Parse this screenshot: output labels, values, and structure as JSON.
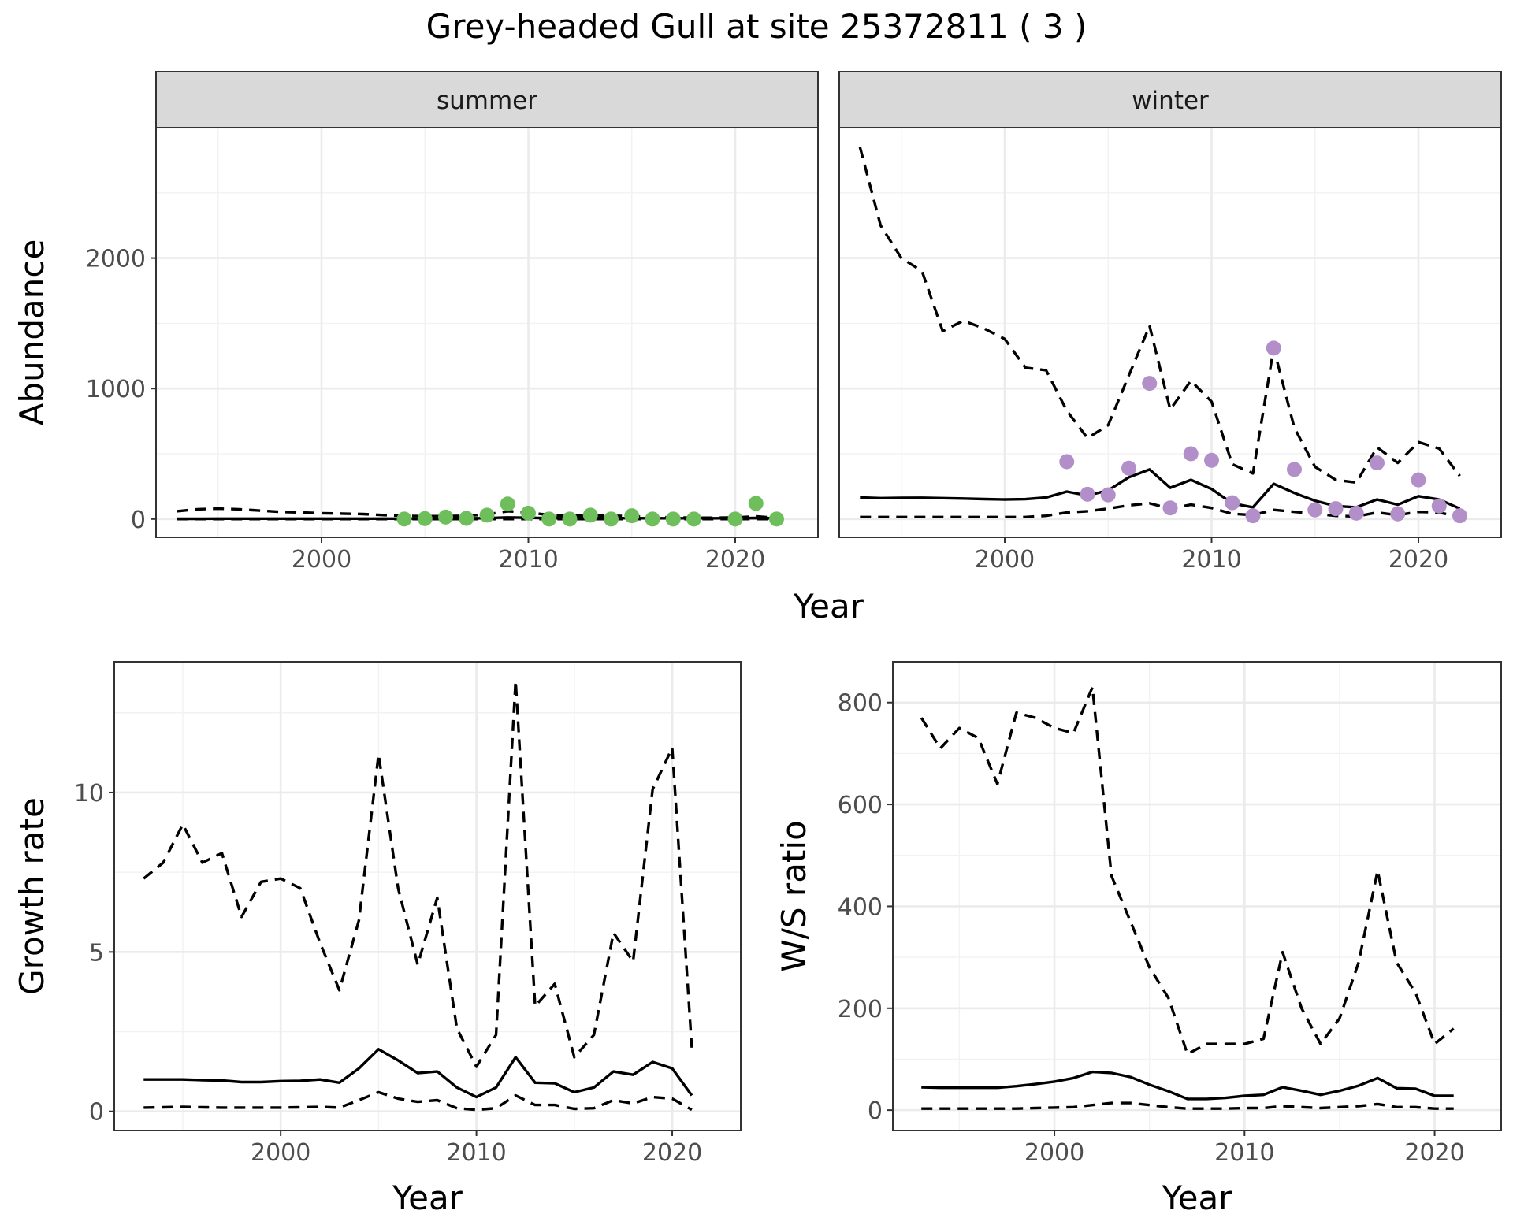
{
  "figure": {
    "title": "Grey-headed Gull at site 25372811 ( 3 )"
  },
  "chart_data": [
    {
      "id": "abundance",
      "type": "line",
      "ylabel": "Abundance",
      "xlabel": "Year",
      "xlim": [
        1992,
        2024
      ],
      "ylim": [
        -140,
        3000
      ],
      "xticks": [
        2000,
        2010,
        2020
      ],
      "yticks": [
        0,
        1000,
        2000
      ],
      "grid": true,
      "facets": [
        {
          "strip": "summer",
          "point_color": "#6ebf5c",
          "years": [
            1993,
            1994,
            1995,
            1996,
            1997,
            1998,
            1999,
            2000,
            2001,
            2002,
            2003,
            2004,
            2005,
            2006,
            2007,
            2008,
            2009,
            2010,
            2011,
            2012,
            2013,
            2014,
            2015,
            2016,
            2017,
            2018,
            2019,
            2020,
            2021,
            2022
          ],
          "estimate": [
            2,
            2,
            3,
            3,
            3,
            3,
            3,
            3,
            3,
            3,
            3,
            3,
            3,
            4,
            5,
            7,
            12,
            10,
            7,
            6,
            8,
            7,
            7,
            6,
            6,
            6,
            6,
            7,
            8,
            5
          ],
          "upper": [
            60,
            75,
            80,
            75,
            65,
            55,
            50,
            45,
            42,
            38,
            30,
            25,
            22,
            22,
            25,
            35,
            60,
            50,
            30,
            22,
            30,
            25,
            22,
            15,
            12,
            10,
            10,
            12,
            20,
            10
          ],
          "lower": [
            0,
            0,
            0,
            0,
            0,
            0,
            0,
            0,
            0,
            0,
            0,
            0,
            0,
            0,
            0,
            0,
            0,
            0,
            0,
            0,
            0,
            0,
            0,
            0,
            0,
            0,
            0,
            0,
            0,
            0
          ],
          "points": {
            "years": [
              2004,
              2005,
              2006,
              2007,
              2008,
              2009,
              2010,
              2011,
              2012,
              2013,
              2014,
              2015,
              2016,
              2017,
              2018,
              2020,
              2021,
              2022
            ],
            "values": [
              0,
              3,
              15,
              5,
              30,
              115,
              45,
              0,
              0,
              30,
              0,
              25,
              0,
              0,
              0,
              0,
              120,
              0
            ]
          }
        },
        {
          "strip": "winter",
          "point_color": "#b38fca",
          "years": [
            1993,
            1994,
            1995,
            1996,
            1997,
            1998,
            1999,
            2000,
            2001,
            2002,
            2003,
            2004,
            2005,
            2006,
            2007,
            2008,
            2009,
            2010,
            2011,
            2012,
            2013,
            2014,
            2015,
            2016,
            2017,
            2018,
            2019,
            2020,
            2021,
            2022
          ],
          "estimate": [
            165,
            160,
            162,
            163,
            160,
            157,
            153,
            150,
            152,
            165,
            210,
            180,
            220,
            320,
            380,
            240,
            300,
            230,
            120,
            90,
            270,
            200,
            140,
            100,
            90,
            150,
            110,
            175,
            150,
            80
          ],
          "upper": [
            2850,
            2250,
            2000,
            1900,
            1440,
            1520,
            1460,
            1380,
            1160,
            1140,
            830,
            620,
            720,
            1100,
            1480,
            840,
            1060,
            900,
            420,
            350,
            1310,
            700,
            400,
            300,
            280,
            550,
            430,
            590,
            540,
            330
          ],
          "lower": [
            15,
            15,
            15,
            15,
            15,
            15,
            15,
            15,
            15,
            25,
            50,
            60,
            80,
            105,
            120,
            80,
            110,
            85,
            40,
            30,
            70,
            55,
            40,
            25,
            20,
            50,
            30,
            55,
            50,
            15
          ],
          "points": {
            "years": [
              2003,
              2004,
              2005,
              2006,
              2007,
              2008,
              2009,
              2010,
              2011,
              2012,
              2013,
              2014,
              2015,
              2016,
              2017,
              2018,
              2019,
              2020,
              2021,
              2022
            ],
            "values": [
              440,
              190,
              185,
              390,
              1040,
              85,
              500,
              450,
              125,
              25,
              1310,
              380,
              70,
              80,
              45,
              430,
              40,
              300,
              100,
              25
            ]
          }
        }
      ]
    },
    {
      "id": "growth",
      "type": "line",
      "ylabel": "Growth rate",
      "xlabel": "Year",
      "xlim": [
        1991.5,
        2023.5
      ],
      "ylim": [
        -0.6,
        14.1
      ],
      "xticks": [
        2000,
        2010,
        2020
      ],
      "yticks": [
        0,
        5,
        10
      ],
      "grid": true,
      "x": [
        1993,
        1994,
        1995,
        1996,
        1997,
        1998,
        1999,
        2000,
        2001,
        2002,
        2003,
        2004,
        2005,
        2006,
        2007,
        2008,
        2009,
        2010,
        2011,
        2012,
        2013,
        2014,
        2015,
        2016,
        2017,
        2018,
        2019,
        2020,
        2021
      ],
      "estimate": [
        1.0,
        1.0,
        1.0,
        0.98,
        0.97,
        0.92,
        0.92,
        0.95,
        0.96,
        1.0,
        0.9,
        1.35,
        1.95,
        1.6,
        1.2,
        1.25,
        0.75,
        0.45,
        0.75,
        1.7,
        0.9,
        0.88,
        0.6,
        0.75,
        1.25,
        1.15,
        1.55,
        1.35,
        0.5
      ],
      "upper": [
        7.3,
        7.8,
        9.0,
        7.8,
        8.1,
        6.1,
        7.2,
        7.3,
        7.0,
        5.3,
        3.8,
        6.0,
        11.2,
        7.0,
        4.6,
        6.7,
        2.6,
        1.4,
        2.4,
        13.5,
        3.3,
        4.0,
        1.7,
        2.4,
        5.6,
        4.7,
        10.1,
        11.4,
        2.0
      ],
      "lower": [
        0.12,
        0.13,
        0.14,
        0.13,
        0.12,
        0.12,
        0.12,
        0.12,
        0.13,
        0.14,
        0.12,
        0.35,
        0.6,
        0.4,
        0.3,
        0.35,
        0.1,
        0.05,
        0.1,
        0.5,
        0.2,
        0.2,
        0.08,
        0.1,
        0.35,
        0.25,
        0.45,
        0.4,
        0.05
      ]
    },
    {
      "id": "ws_ratio",
      "type": "line",
      "ylabel": "W/S ratio",
      "xlabel": "Year",
      "xlim": [
        1991.5,
        2023.5
      ],
      "ylim": [
        -40,
        880
      ],
      "xticks": [
        2000,
        2010,
        2020
      ],
      "yticks": [
        0,
        200,
        400,
        600,
        800
      ],
      "grid": true,
      "x": [
        1993,
        1994,
        1995,
        1996,
        1997,
        1998,
        1999,
        2000,
        2001,
        2002,
        2003,
        2004,
        2005,
        2006,
        2007,
        2008,
        2009,
        2010,
        2011,
        2012,
        2013,
        2014,
        2015,
        2016,
        2017,
        2018,
        2019,
        2020,
        2021
      ],
      "estimate": [
        45,
        44,
        44,
        44,
        44,
        47,
        51,
        56,
        63,
        75,
        73,
        65,
        50,
        37,
        22,
        22,
        24,
        28,
        30,
        45,
        38,
        30,
        38,
        48,
        63,
        43,
        42,
        28,
        28
      ],
      "upper": [
        770,
        710,
        750,
        730,
        640,
        780,
        770,
        750,
        740,
        830,
        460,
        370,
        280,
        220,
        110,
        130,
        130,
        130,
        140,
        310,
        200,
        130,
        180,
        290,
        470,
        290,
        230,
        130,
        160
      ],
      "lower": [
        3,
        3,
        3,
        3,
        3,
        3,
        4,
        5,
        6,
        10,
        14,
        14,
        10,
        6,
        3,
        3,
        3,
        4,
        4,
        8,
        6,
        4,
        6,
        8,
        12,
        6,
        6,
        3,
        3
      ]
    }
  ]
}
